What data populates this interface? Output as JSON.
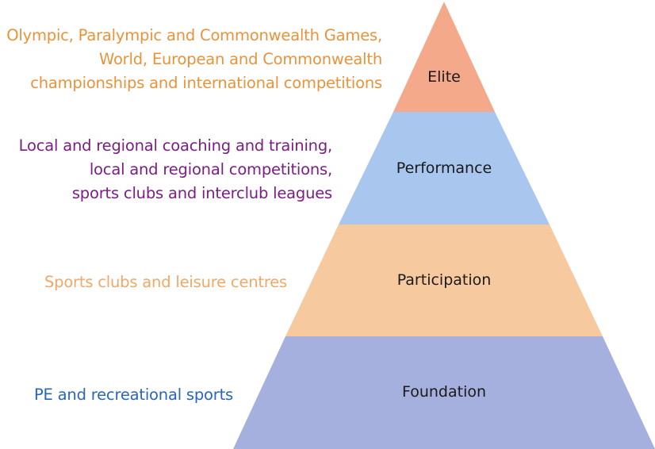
{
  "diagram": {
    "tiers": [
      {
        "id": "elite",
        "label": "Elite",
        "fill": "#f4a98a",
        "text_color": "#e8933a",
        "description": [
          "Olympic, Paralympic and Commonwealth Games,",
          "World, European and Commonwealth",
          "championships and international competitions"
        ]
      },
      {
        "id": "performance",
        "label": "Performance",
        "fill": "#a8c6ee",
        "text_color": "#7a1e86",
        "description": [
          "Local and regional coaching and training,",
          "local and regional competitions,",
          "sports clubs and interclub leagues"
        ]
      },
      {
        "id": "participation",
        "label": "Participation",
        "fill": "#f6ca9e",
        "text_color": "#f0a868",
        "description": [
          "Sports clubs and leisure centres"
        ]
      },
      {
        "id": "foundation",
        "label": "Foundation",
        "fill": "#a5b0de",
        "text_color": "#2a66b8",
        "description": [
          "PE and recreational sports"
        ]
      }
    ]
  }
}
